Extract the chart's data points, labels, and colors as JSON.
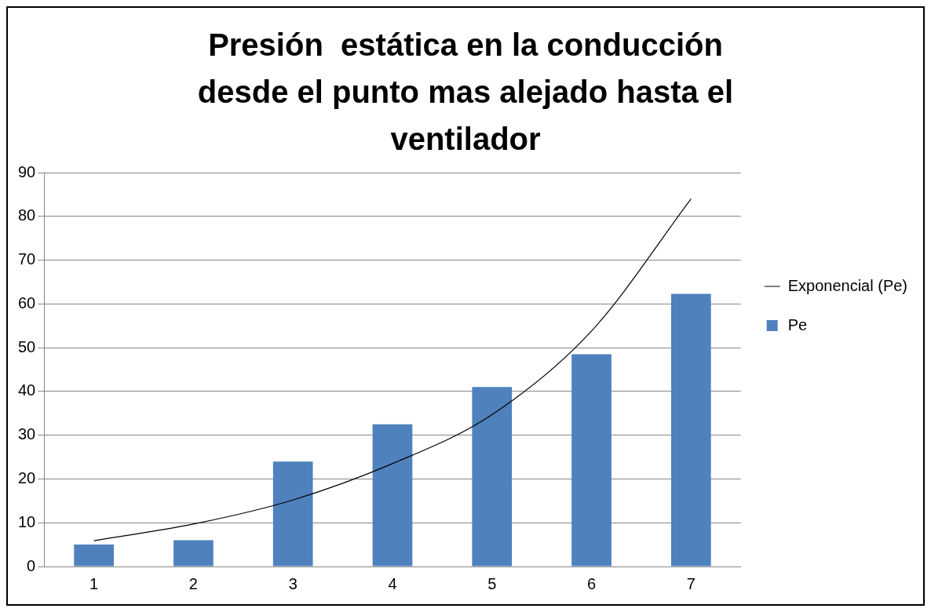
{
  "chart_data": {
    "type": "bar",
    "title": "Presión  estática en la conducción desde el punto mas alejado hasta el ventilador",
    "categories": [
      "1",
      "2",
      "3",
      "4",
      "5",
      "6",
      "7"
    ],
    "series": [
      {
        "name": "Pe",
        "color": "#4f81bd",
        "values": [
          5,
          6,
          24,
          32.5,
          41,
          48.5,
          62.3
        ]
      },
      {
        "name": "Exponencial (Pe)",
        "type": "line",
        "color": "#000000",
        "values": [
          5.9,
          9.7,
          15.2,
          23.5,
          34.7,
          53.8,
          84
        ]
      }
    ],
    "ylim": [
      0,
      90
    ],
    "yticks": [
      0,
      10,
      20,
      30,
      40,
      50,
      60,
      70,
      80,
      90
    ],
    "grid": "y",
    "legend": "right",
    "marker": "none"
  }
}
